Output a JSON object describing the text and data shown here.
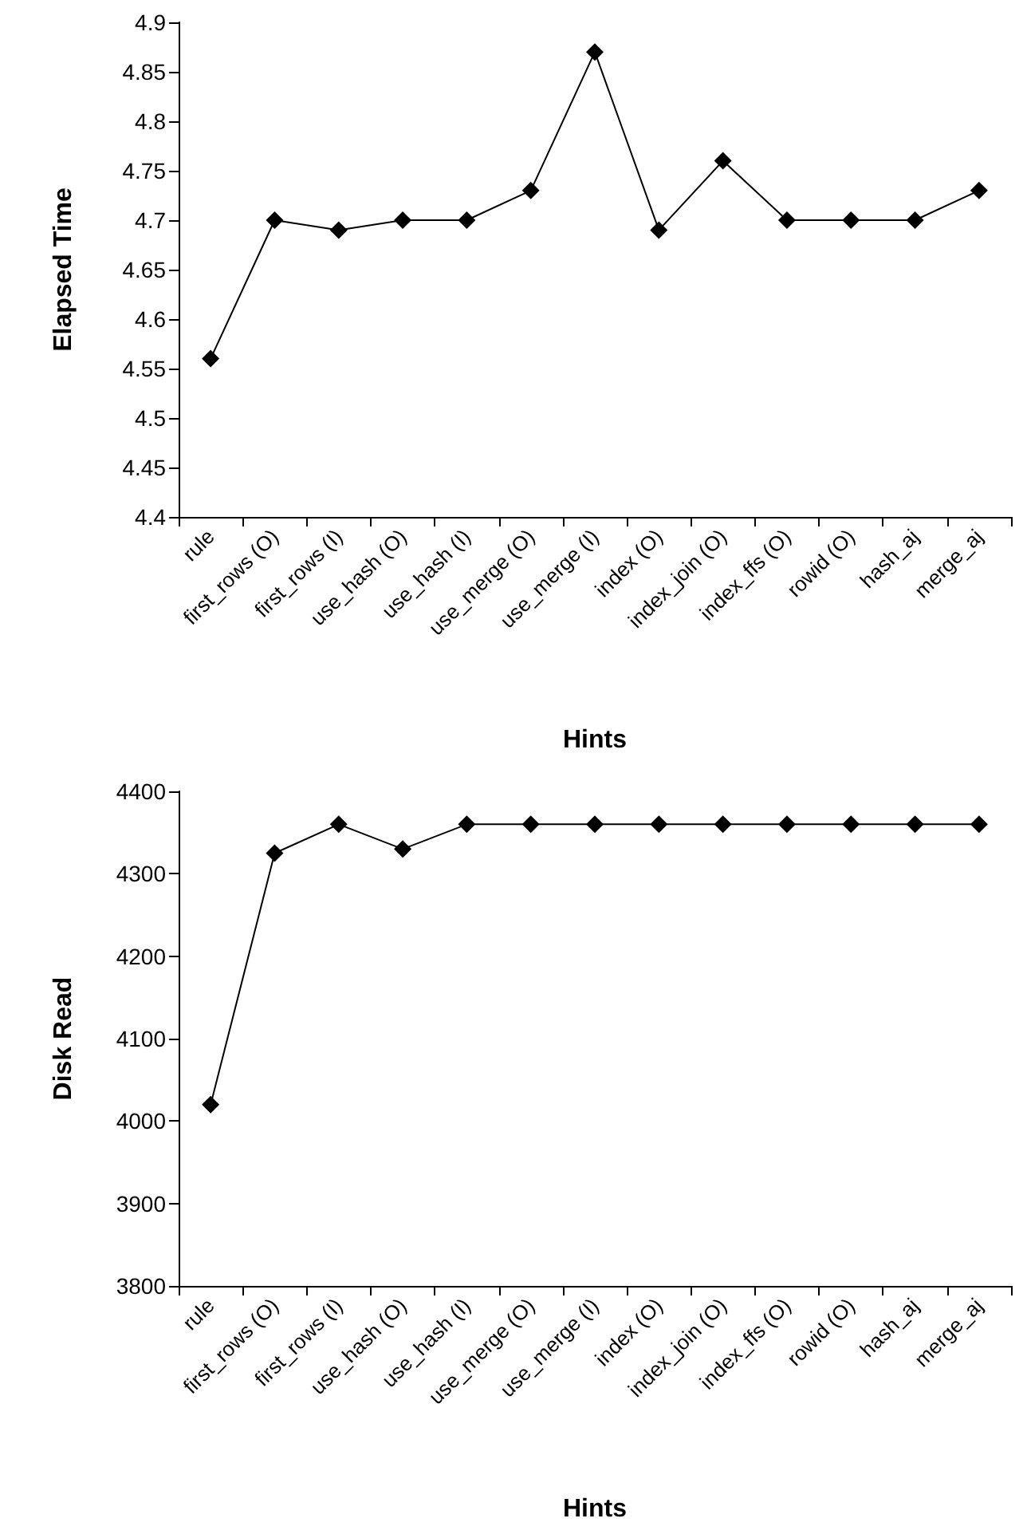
{
  "chart_data": [
    {
      "type": "line",
      "xlabel": "Hints",
      "ylabel": "Elapsed Time",
      "categories": [
        "rule",
        "first_rows (O)",
        "first_rows (I)",
        "use_hash (O)",
        "use_hash (I)",
        "use_merge (O)",
        "use_merge (I)",
        "index (O)",
        "index_join (O)",
        "index_ffs (O)",
        "rowid (O)",
        "hash_aj",
        "merge_aj"
      ],
      "series": [
        {
          "color": "#000000",
          "values": [
            4.56,
            4.7,
            4.69,
            4.7,
            4.7,
            4.73,
            4.87,
            4.69,
            4.76,
            4.7,
            4.7,
            4.7,
            4.73
          ]
        }
      ],
      "ylim": [
        4.4,
        4.9
      ],
      "yticks": [
        4.4,
        4.45,
        4.5,
        4.55,
        4.6,
        4.65,
        4.7,
        4.75,
        4.8,
        4.85,
        4.9
      ],
      "grid": false,
      "marker": "diamond",
      "line_style": "solid"
    },
    {
      "type": "line",
      "xlabel": "Hints",
      "ylabel": "Disk Read",
      "categories": [
        "rule",
        "first_rows (O)",
        "first_rows (I)",
        "use_hash (O)",
        "use_hash (I)",
        "use_merge (O)",
        "use_merge (I)",
        "index (O)",
        "index_join (O)",
        "index_ffs (O)",
        "rowid (O)",
        "hash_aj",
        "merge_aj"
      ],
      "series": [
        {
          "color": "#000000",
          "values": [
            4020,
            4325,
            4360,
            4330,
            4360,
            4360,
            4360,
            4360,
            4360,
            4360,
            4360,
            4360,
            4360
          ]
        }
      ],
      "ylim": [
        3800,
        4400
      ],
      "yticks": [
        3800,
        3900,
        4000,
        4100,
        4200,
        4300,
        4400
      ],
      "grid": false,
      "marker": "diamond",
      "line_style": "solid"
    }
  ]
}
